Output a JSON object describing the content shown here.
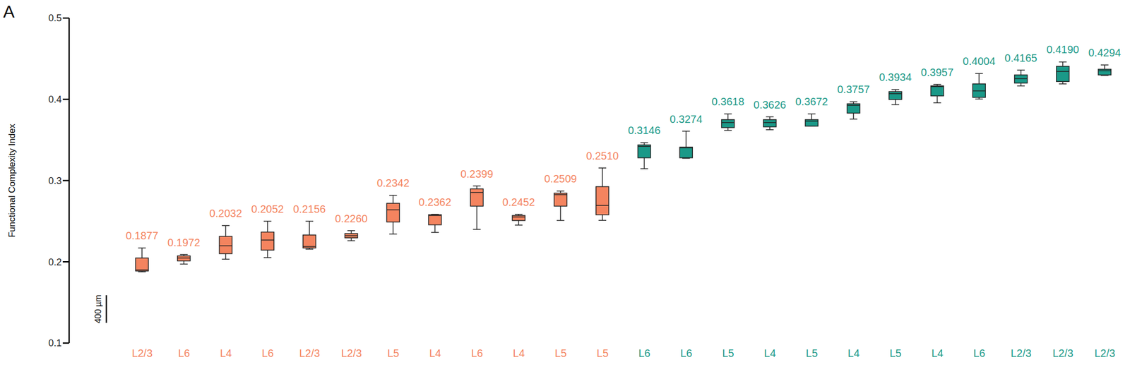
{
  "chart_data": {
    "type": "boxplot",
    "panel_label": "A",
    "ylabel": "Functional Complexity Index",
    "annotations": [
      "400 µm"
    ],
    "categories": [
      "L2/3",
      "L6",
      "L4",
      "L6",
      "L2/3",
      "L2/3",
      "L5",
      "L4",
      "L6",
      "L4",
      "L5",
      "L5",
      "L6",
      "L6",
      "L5",
      "L4",
      "L5",
      "L4",
      "L5",
      "L4",
      "L6",
      "L2/3",
      "L2/3",
      "L2/3"
    ],
    "min": [
      0.1877,
      0.1972,
      0.2032,
      0.2052,
      0.2156,
      0.226,
      0.2342,
      0.2362,
      0.2399,
      0.2452,
      0.2509,
      0.251,
      0.3146,
      0.3274,
      0.3618,
      0.3626,
      0.3672,
      0.3757,
      0.3934,
      0.3957,
      0.4004,
      0.4165,
      0.419,
      0.4294
    ],
    "q1": [
      0.1887,
      0.2011,
      0.21,
      0.2144,
      0.217,
      0.2295,
      0.249,
      0.2455,
      0.2685,
      0.2508,
      0.2685,
      0.2579,
      0.328,
      0.328,
      0.3652,
      0.3661,
      0.367,
      0.383,
      0.3998,
      0.4042,
      0.4024,
      0.42,
      0.4219,
      0.43
    ],
    "median": [
      0.19,
      0.2047,
      0.2197,
      0.2268,
      0.2188,
      0.2321,
      0.264,
      0.257,
      0.2854,
      0.2552,
      0.2827,
      0.2694,
      0.3421,
      0.3404,
      0.3714,
      0.3714,
      0.3732,
      0.3927,
      0.4069,
      0.4157,
      0.4104,
      0.4255,
      0.4343,
      0.4352
    ],
    "q3": [
      0.2047,
      0.2073,
      0.2313,
      0.2366,
      0.233,
      0.2348,
      0.272,
      0.258,
      0.2898,
      0.257,
      0.2845,
      0.2925,
      0.3439,
      0.3412,
      0.375,
      0.375,
      0.375,
      0.3945,
      0.4095,
      0.4166,
      0.419,
      0.43,
      0.4406,
      0.437
    ],
    "max": [
      0.217,
      0.209,
      0.2446,
      0.25,
      0.25,
      0.2384,
      0.2818,
      0.2585,
      0.2934,
      0.2585,
      0.2871,
      0.3155,
      0.3466,
      0.3608,
      0.382,
      0.3785,
      0.382,
      0.397,
      0.412,
      0.4184,
      0.4317,
      0.436,
      0.446,
      0.4423
    ],
    "value_labels": [
      "0.1877",
      "0.1972",
      "0.2032",
      "0.2052",
      "0.2156",
      "0.2260",
      "0.2342",
      "0.2362",
      "0.2399",
      "0.2452",
      "0.2509",
      "0.2510",
      "0.3146",
      "0.3274",
      "0.3618",
      "0.3626",
      "0.3672",
      "0.3757",
      "0.3934",
      "0.3957",
      "0.4004",
      "0.4165",
      "0.4190",
      "0.4294"
    ],
    "colors": [
      "#F4845F",
      "#F4845F",
      "#F4845F",
      "#F4845F",
      "#F4845F",
      "#F4845F",
      "#F4845F",
      "#F4845F",
      "#F4845F",
      "#F4845F",
      "#F4845F",
      "#F4845F",
      "#1A9988",
      "#1A9988",
      "#1A9988",
      "#1A9988",
      "#1A9988",
      "#1A9988",
      "#1A9988",
      "#1A9988",
      "#1A9988",
      "#1A9988",
      "#1A9988",
      "#1A9988"
    ],
    "ylim": [
      0.1,
      0.5
    ],
    "yticks": [
      0.1,
      0.2,
      0.3,
      0.4,
      0.5
    ],
    "data_labels": true
  }
}
